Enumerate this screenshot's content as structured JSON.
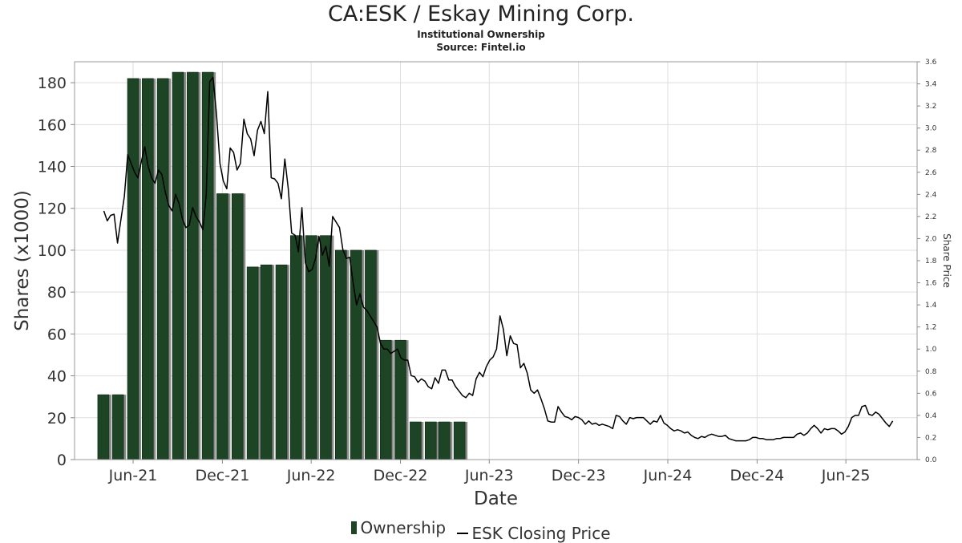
{
  "chart_data": {
    "type": "bar+line",
    "title": "CA:ESK / Eskay Mining Corp.",
    "subtitle": "Institutional Ownership",
    "source": "Source: Fintel.io",
    "xlabel": "Date",
    "ylabel_left": "Shares (x1000)",
    "ylabel_right": "Share Price",
    "x_range": [
      "2021-02-01",
      "2025-10-25"
    ],
    "ylim_left": [
      0,
      190
    ],
    "ylim_right": [
      0,
      3.6
    ],
    "left_ticks": [
      0,
      20,
      40,
      60,
      80,
      100,
      120,
      140,
      160,
      180
    ],
    "right_ticks": [
      "0.0",
      "0.2",
      "0.4",
      "0.6",
      "0.8",
      "1.0",
      "1.2",
      "1.4",
      "1.6",
      "1.8",
      "2.0",
      "2.2",
      "2.4",
      "2.6",
      "2.8",
      "3.0",
      "3.2",
      "3.4",
      "3.6"
    ],
    "x_ticks": [
      {
        "label": "Jun-21",
        "date": "2021-06-01"
      },
      {
        "label": "Dec-21",
        "date": "2021-12-01"
      },
      {
        "label": "Jun-22",
        "date": "2022-06-01"
      },
      {
        "label": "Dec-22",
        "date": "2022-12-01"
      },
      {
        "label": "Jun-23",
        "date": "2023-06-01"
      },
      {
        "label": "Dec-23",
        "date": "2023-12-01"
      },
      {
        "label": "Jun-24",
        "date": "2024-06-01"
      },
      {
        "label": "Dec-24",
        "date": "2024-12-01"
      },
      {
        "label": "Jun-25",
        "date": "2025-06-01"
      }
    ],
    "grid": true,
    "legend_position": "bottom",
    "colors": {
      "bar": "#1d4424",
      "bar_shadow": "#8c8c8c",
      "line": "#000000",
      "grid": "#dddddd"
    },
    "series": [
      {
        "name": "Ownership",
        "type": "bar",
        "points": [
          {
            "date": "2021-04-01",
            "value": 31
          },
          {
            "date": "2021-05-01",
            "value": 31
          },
          {
            "date": "2021-06-01",
            "value": 182
          },
          {
            "date": "2021-07-01",
            "value": 182
          },
          {
            "date": "2021-08-01",
            "value": 182
          },
          {
            "date": "2021-09-01",
            "value": 185
          },
          {
            "date": "2021-10-01",
            "value": 185
          },
          {
            "date": "2021-11-01",
            "value": 185
          },
          {
            "date": "2021-12-01",
            "value": 127
          },
          {
            "date": "2022-01-01",
            "value": 127
          },
          {
            "date": "2022-02-01",
            "value": 92
          },
          {
            "date": "2022-03-01",
            "value": 93
          },
          {
            "date": "2022-04-01",
            "value": 93
          },
          {
            "date": "2022-05-01",
            "value": 107
          },
          {
            "date": "2022-06-01",
            "value": 107
          },
          {
            "date": "2022-07-01",
            "value": 107
          },
          {
            "date": "2022-08-01",
            "value": 100
          },
          {
            "date": "2022-09-01",
            "value": 100
          },
          {
            "date": "2022-10-01",
            "value": 100
          },
          {
            "date": "2022-11-01",
            "value": 57
          },
          {
            "date": "2022-12-01",
            "value": 57
          },
          {
            "date": "2023-01-01",
            "value": 18
          },
          {
            "date": "2023-02-01",
            "value": 18
          },
          {
            "date": "2023-03-01",
            "value": 18
          },
          {
            "date": "2023-04-01",
            "value": 18
          }
        ]
      },
      {
        "name": "ESK Closing Price",
        "type": "line",
        "points": [
          [
            "2021-04-02",
            2.25
          ],
          [
            "2021-04-09",
            2.16
          ],
          [
            "2021-04-16",
            2.21
          ],
          [
            "2021-04-23",
            2.22
          ],
          [
            "2021-04-30",
            1.96
          ],
          [
            "2021-05-07",
            2.17
          ],
          [
            "2021-05-14",
            2.38
          ],
          [
            "2021-05-21",
            2.76
          ],
          [
            "2021-05-28",
            2.68
          ],
          [
            "2021-06-04",
            2.6
          ],
          [
            "2021-06-11",
            2.55
          ],
          [
            "2021-06-18",
            2.7
          ],
          [
            "2021-06-25",
            2.83
          ],
          [
            "2021-07-02",
            2.65
          ],
          [
            "2021-07-09",
            2.55
          ],
          [
            "2021-07-16",
            2.5
          ],
          [
            "2021-07-23",
            2.62
          ],
          [
            "2021-07-30",
            2.58
          ],
          [
            "2021-08-06",
            2.42
          ],
          [
            "2021-08-13",
            2.3
          ],
          [
            "2021-08-20",
            2.25
          ],
          [
            "2021-08-27",
            2.4
          ],
          [
            "2021-09-03",
            2.32
          ],
          [
            "2021-09-10",
            2.18
          ],
          [
            "2021-09-17",
            2.1
          ],
          [
            "2021-09-24",
            2.12
          ],
          [
            "2021-10-01",
            2.28
          ],
          [
            "2021-10-08",
            2.2
          ],
          [
            "2021-10-15",
            2.15
          ],
          [
            "2021-10-22",
            2.08
          ],
          [
            "2021-10-29",
            2.4
          ],
          [
            "2021-11-05",
            3.42
          ],
          [
            "2021-11-12",
            3.46
          ],
          [
            "2021-11-19",
            3.12
          ],
          [
            "2021-11-26",
            2.68
          ],
          [
            "2021-12-03",
            2.52
          ],
          [
            "2021-12-10",
            2.45
          ],
          [
            "2021-12-17",
            2.82
          ],
          [
            "2021-12-24",
            2.78
          ],
          [
            "2021-12-31",
            2.62
          ],
          [
            "2022-01-07",
            2.68
          ],
          [
            "2022-01-14",
            3.08
          ],
          [
            "2022-01-21",
            2.95
          ],
          [
            "2022-01-28",
            2.9
          ],
          [
            "2022-02-04",
            2.75
          ],
          [
            "2022-02-11",
            2.98
          ],
          [
            "2022-02-18",
            3.06
          ],
          [
            "2022-02-25",
            2.95
          ],
          [
            "2022-03-04",
            3.33
          ],
          [
            "2022-03-11",
            2.55
          ],
          [
            "2022-03-18",
            2.54
          ],
          [
            "2022-03-25",
            2.5
          ],
          [
            "2022-04-01",
            2.36
          ],
          [
            "2022-04-08",
            2.72
          ],
          [
            "2022-04-15",
            2.45
          ],
          [
            "2022-04-22",
            2.05
          ],
          [
            "2022-04-29",
            2.03
          ],
          [
            "2022-05-06",
            1.88
          ],
          [
            "2022-05-13",
            2.28
          ],
          [
            "2022-05-20",
            1.78
          ],
          [
            "2022-05-27",
            1.7
          ],
          [
            "2022-06-03",
            1.72
          ],
          [
            "2022-06-10",
            1.82
          ],
          [
            "2022-06-17",
            2.02
          ],
          [
            "2022-06-24",
            1.85
          ],
          [
            "2022-07-01",
            1.93
          ],
          [
            "2022-07-08",
            1.75
          ],
          [
            "2022-07-15",
            2.2
          ],
          [
            "2022-07-22",
            2.15
          ],
          [
            "2022-07-29",
            2.1
          ],
          [
            "2022-08-05",
            1.9
          ],
          [
            "2022-08-12",
            1.82
          ],
          [
            "2022-08-19",
            1.83
          ],
          [
            "2022-08-26",
            1.6
          ],
          [
            "2022-09-02",
            1.4
          ],
          [
            "2022-09-09",
            1.5
          ],
          [
            "2022-09-16",
            1.38
          ],
          [
            "2022-09-23",
            1.35
          ],
          [
            "2022-09-30",
            1.3
          ],
          [
            "2022-10-07",
            1.25
          ],
          [
            "2022-10-14",
            1.2
          ],
          [
            "2022-10-21",
            1.05
          ],
          [
            "2022-10-28",
            1.0
          ],
          [
            "2022-11-04",
            1.0
          ],
          [
            "2022-11-11",
            0.96
          ],
          [
            "2022-11-18",
            0.98
          ],
          [
            "2022-11-25",
            1.0
          ],
          [
            "2022-12-02",
            0.92
          ],
          [
            "2022-12-09",
            0.9
          ],
          [
            "2022-12-16",
            0.9
          ],
          [
            "2022-12-23",
            0.76
          ],
          [
            "2022-12-30",
            0.75
          ],
          [
            "2023-01-06",
            0.7
          ],
          [
            "2023-01-13",
            0.73
          ],
          [
            "2023-01-20",
            0.71
          ],
          [
            "2023-01-27",
            0.66
          ],
          [
            "2023-02-03",
            0.64
          ],
          [
            "2023-02-10",
            0.74
          ],
          [
            "2023-02-17",
            0.69
          ],
          [
            "2023-02-24",
            0.81
          ],
          [
            "2023-03-03",
            0.81
          ],
          [
            "2023-03-10",
            0.72
          ],
          [
            "2023-03-17",
            0.72
          ],
          [
            "2023-03-24",
            0.66
          ],
          [
            "2023-03-31",
            0.62
          ],
          [
            "2023-04-07",
            0.58
          ],
          [
            "2023-04-14",
            0.56
          ],
          [
            "2023-04-21",
            0.6
          ],
          [
            "2023-04-28",
            0.58
          ],
          [
            "2023-05-05",
            0.73
          ],
          [
            "2023-05-12",
            0.79
          ],
          [
            "2023-05-19",
            0.75
          ],
          [
            "2023-05-26",
            0.84
          ],
          [
            "2023-06-02",
            0.9
          ],
          [
            "2023-06-09",
            0.93
          ],
          [
            "2023-06-16",
            1.0
          ],
          [
            "2023-06-23",
            1.3
          ],
          [
            "2023-06-30",
            1.18
          ],
          [
            "2023-07-07",
            0.94
          ],
          [
            "2023-07-14",
            1.12
          ],
          [
            "2023-07-21",
            1.05
          ],
          [
            "2023-07-28",
            1.04
          ],
          [
            "2023-08-04",
            0.83
          ],
          [
            "2023-08-11",
            0.87
          ],
          [
            "2023-08-18",
            0.78
          ],
          [
            "2023-08-25",
            0.63
          ],
          [
            "2023-09-01",
            0.6
          ],
          [
            "2023-09-08",
            0.63
          ],
          [
            "2023-09-15",
            0.55
          ],
          [
            "2023-09-22",
            0.46
          ],
          [
            "2023-09-29",
            0.35
          ],
          [
            "2023-10-06",
            0.34
          ],
          [
            "2023-10-13",
            0.34
          ],
          [
            "2023-10-20",
            0.48
          ],
          [
            "2023-10-27",
            0.43
          ],
          [
            "2023-11-03",
            0.39
          ],
          [
            "2023-11-10",
            0.38
          ],
          [
            "2023-11-17",
            0.36
          ],
          [
            "2023-11-24",
            0.39
          ],
          [
            "2023-12-01",
            0.38
          ],
          [
            "2023-12-08",
            0.36
          ],
          [
            "2023-12-15",
            0.32
          ],
          [
            "2023-12-22",
            0.35
          ],
          [
            "2023-12-29",
            0.32
          ],
          [
            "2024-01-05",
            0.33
          ],
          [
            "2024-01-12",
            0.31
          ],
          [
            "2024-01-19",
            0.32
          ],
          [
            "2024-01-26",
            0.31
          ],
          [
            "2024-02-02",
            0.3
          ],
          [
            "2024-02-09",
            0.28
          ],
          [
            "2024-02-16",
            0.4
          ],
          [
            "2024-02-23",
            0.39
          ],
          [
            "2024-03-01",
            0.35
          ],
          [
            "2024-03-08",
            0.32
          ],
          [
            "2024-03-15",
            0.38
          ],
          [
            "2024-03-22",
            0.37
          ],
          [
            "2024-03-29",
            0.38
          ],
          [
            "2024-04-05",
            0.38
          ],
          [
            "2024-04-12",
            0.38
          ],
          [
            "2024-04-19",
            0.35
          ],
          [
            "2024-04-26",
            0.32
          ],
          [
            "2024-05-03",
            0.35
          ],
          [
            "2024-05-10",
            0.34
          ],
          [
            "2024-05-17",
            0.4
          ],
          [
            "2024-05-24",
            0.33
          ],
          [
            "2024-05-31",
            0.31
          ],
          [
            "2024-06-07",
            0.28
          ],
          [
            "2024-06-14",
            0.26
          ],
          [
            "2024-06-21",
            0.27
          ],
          [
            "2024-06-28",
            0.26
          ],
          [
            "2024-07-05",
            0.24
          ],
          [
            "2024-07-12",
            0.25
          ],
          [
            "2024-07-19",
            0.22
          ],
          [
            "2024-07-26",
            0.2
          ],
          [
            "2024-08-02",
            0.19
          ],
          [
            "2024-08-09",
            0.21
          ],
          [
            "2024-08-16",
            0.2
          ],
          [
            "2024-08-23",
            0.22
          ],
          [
            "2024-08-30",
            0.23
          ],
          [
            "2024-09-06",
            0.22
          ],
          [
            "2024-09-13",
            0.21
          ],
          [
            "2024-09-20",
            0.21
          ],
          [
            "2024-09-27",
            0.22
          ],
          [
            "2024-10-04",
            0.19
          ],
          [
            "2024-10-11",
            0.18
          ],
          [
            "2024-10-18",
            0.17
          ],
          [
            "2024-10-25",
            0.17
          ],
          [
            "2024-11-01",
            0.17
          ],
          [
            "2024-11-08",
            0.17
          ],
          [
            "2024-11-15",
            0.18
          ],
          [
            "2024-11-22",
            0.2
          ],
          [
            "2024-11-29",
            0.2
          ],
          [
            "2024-12-06",
            0.19
          ],
          [
            "2024-12-13",
            0.19
          ],
          [
            "2024-12-20",
            0.18
          ],
          [
            "2024-12-27",
            0.18
          ],
          [
            "2025-01-03",
            0.18
          ],
          [
            "2025-01-10",
            0.19
          ],
          [
            "2025-01-17",
            0.19
          ],
          [
            "2025-01-24",
            0.2
          ],
          [
            "2025-01-31",
            0.2
          ],
          [
            "2025-02-07",
            0.2
          ],
          [
            "2025-02-14",
            0.2
          ],
          [
            "2025-02-21",
            0.23
          ],
          [
            "2025-02-28",
            0.24
          ],
          [
            "2025-03-07",
            0.22
          ],
          [
            "2025-03-14",
            0.24
          ],
          [
            "2025-03-21",
            0.28
          ],
          [
            "2025-03-28",
            0.31
          ],
          [
            "2025-04-04",
            0.28
          ],
          [
            "2025-04-11",
            0.24
          ],
          [
            "2025-04-18",
            0.28
          ],
          [
            "2025-04-25",
            0.27
          ],
          [
            "2025-05-02",
            0.28
          ],
          [
            "2025-05-09",
            0.28
          ],
          [
            "2025-05-16",
            0.26
          ],
          [
            "2025-05-23",
            0.23
          ],
          [
            "2025-05-30",
            0.25
          ],
          [
            "2025-06-06",
            0.3
          ],
          [
            "2025-06-13",
            0.38
          ],
          [
            "2025-06-20",
            0.4
          ],
          [
            "2025-06-27",
            0.4
          ],
          [
            "2025-07-04",
            0.48
          ],
          [
            "2025-07-11",
            0.49
          ],
          [
            "2025-07-18",
            0.41
          ],
          [
            "2025-07-25",
            0.4
          ],
          [
            "2025-08-01",
            0.43
          ],
          [
            "2025-08-08",
            0.41
          ],
          [
            "2025-08-15",
            0.37
          ],
          [
            "2025-08-22",
            0.33
          ],
          [
            "2025-08-29",
            0.3
          ],
          [
            "2025-09-05",
            0.35
          ]
        ]
      }
    ]
  }
}
